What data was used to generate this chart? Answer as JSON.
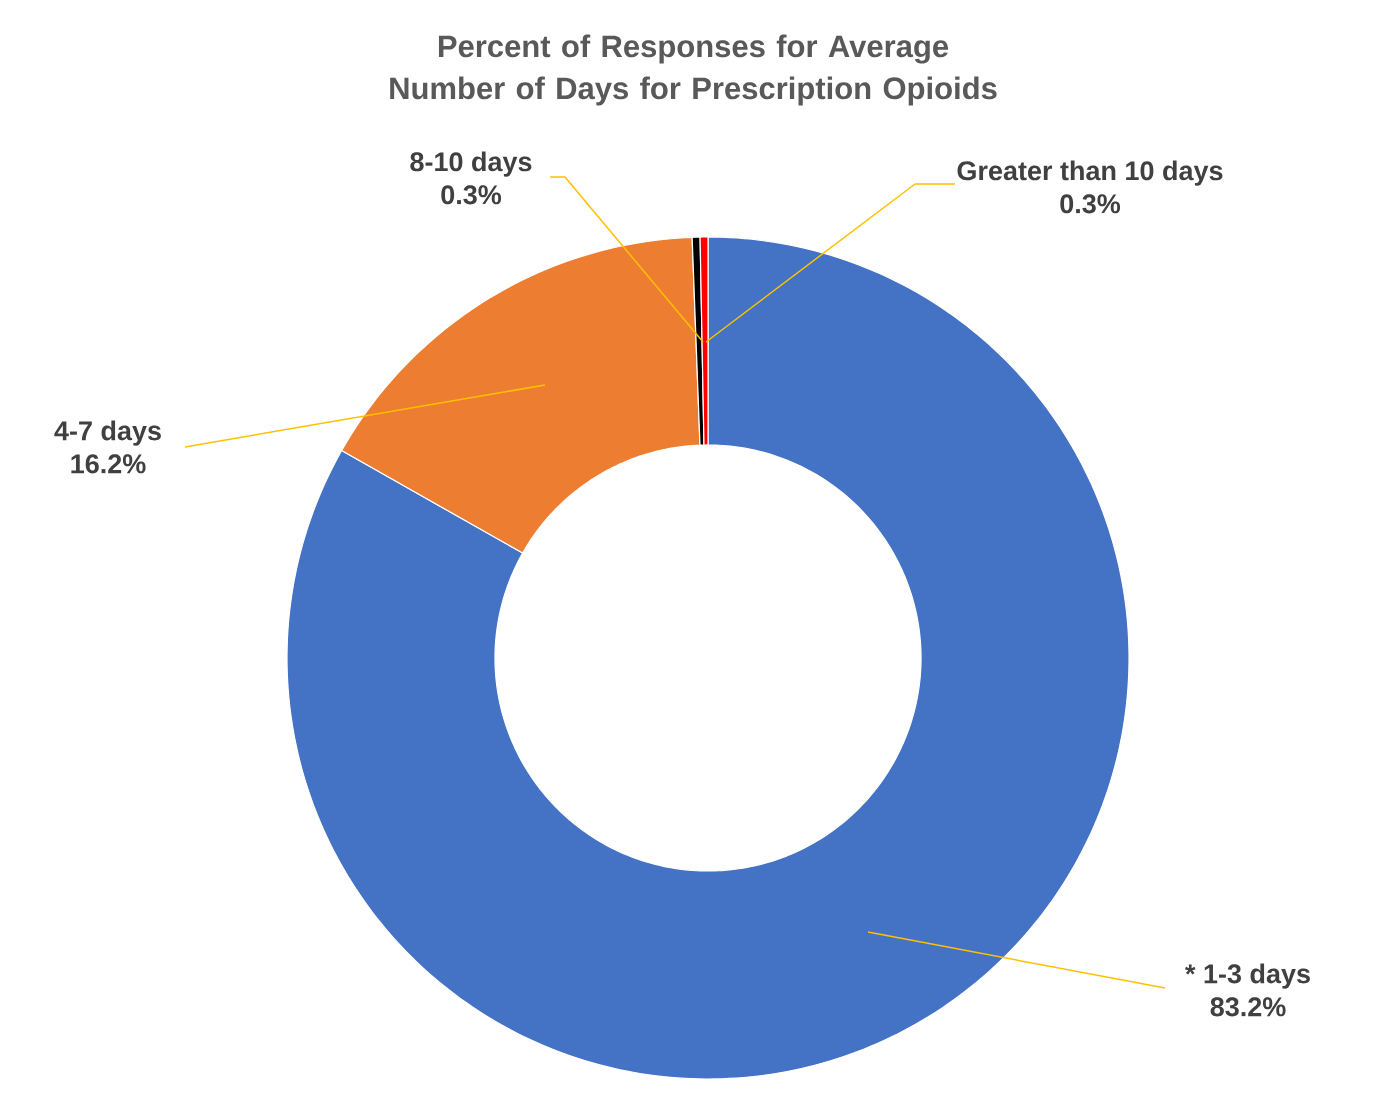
{
  "chart_data": {
    "type": "donut",
    "title": "Percent of Responses for Average Number of Days for Prescription Opioids",
    "categories": [
      "* 1-3 days",
      "4-7 days",
      "8-10 days",
      "Greater than 10 days"
    ],
    "values": [
      83.2,
      16.2,
      0.3,
      0.3
    ],
    "colors": [
      "#4472c4",
      "#ed7d31",
      "#000000",
      "#ff0000"
    ],
    "value_labels": [
      "83.2%",
      "16.2%",
      "0.3%",
      "0.3%"
    ]
  }
}
